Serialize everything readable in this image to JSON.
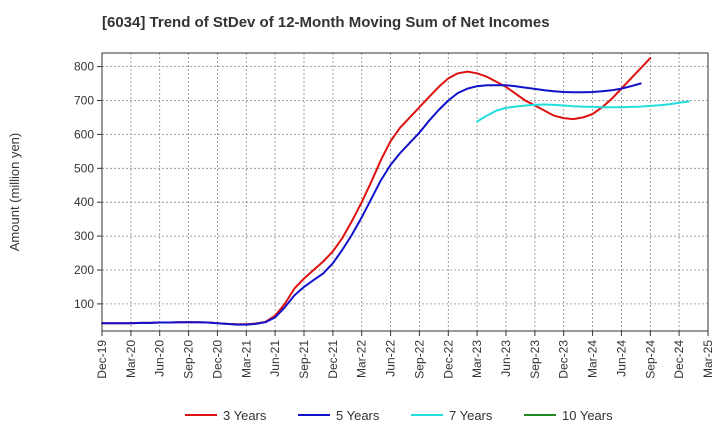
{
  "chart_data": {
    "type": "line",
    "title": "[6034]  Trend of StDev of 12-Month Moving Sum of Net Incomes",
    "ylabel": "Amount (million yen)",
    "xlabel": "",
    "ylim": [
      20,
      840
    ],
    "yticks": [
      100,
      200,
      300,
      400,
      500,
      600,
      700,
      800
    ],
    "xticks": [
      "Dec-19",
      "Mar-20",
      "Jun-20",
      "Sep-20",
      "Dec-20",
      "Mar-21",
      "Jun-21",
      "Sep-21",
      "Dec-21",
      "Mar-22",
      "Jun-22",
      "Sep-22",
      "Dec-22",
      "Mar-23",
      "Jun-23",
      "Sep-23",
      "Dec-23",
      "Mar-24",
      "Jun-24",
      "Sep-24",
      "Dec-24",
      "Mar-25"
    ],
    "grid": true,
    "legend_position": "bottom",
    "series": [
      {
        "name": "3 Years",
        "color": "#dd1111",
        "start_index": 0,
        "values": [
          43,
          43,
          43,
          43,
          44,
          44,
          45,
          45,
          46,
          46,
          46,
          45,
          43,
          41,
          40,
          40,
          42,
          47,
          65,
          100,
          145,
          175,
          200,
          225,
          255,
          295,
          345,
          400,
          460,
          525,
          580,
          620,
          650,
          680,
          710,
          740,
          765,
          780,
          785,
          780,
          770,
          755,
          740,
          720,
          700,
          685,
          670,
          655,
          648,
          645,
          650,
          660,
          680,
          705,
          735,
          765,
          795,
          825
        ]
      },
      {
        "name": "5 Years",
        "color": "#1111cc",
        "start_index": 0,
        "values": [
          43,
          43,
          43,
          43,
          44,
          44,
          45,
          45,
          46,
          46,
          46,
          45,
          43,
          41,
          39,
          39,
          41,
          46,
          60,
          90,
          125,
          150,
          170,
          190,
          220,
          260,
          305,
          355,
          410,
          465,
          510,
          545,
          575,
          605,
          640,
          672,
          700,
          722,
          735,
          742,
          745,
          745,
          745,
          742,
          738,
          734,
          730,
          727,
          725,
          724,
          724,
          725,
          727,
          730,
          735,
          742,
          750
        ]
      },
      {
        "name": "7 Years",
        "color": "#22dddd",
        "start_index": 39,
        "values": [
          638,
          655,
          670,
          678,
          682,
          685,
          687,
          688,
          687,
          685,
          683,
          682,
          681,
          680,
          680,
          680,
          681,
          682,
          684,
          686,
          689,
          693,
          697
        ]
      },
      {
        "name": "10 Years",
        "color": "#228822",
        "start_index": 0,
        "values": []
      }
    ]
  }
}
